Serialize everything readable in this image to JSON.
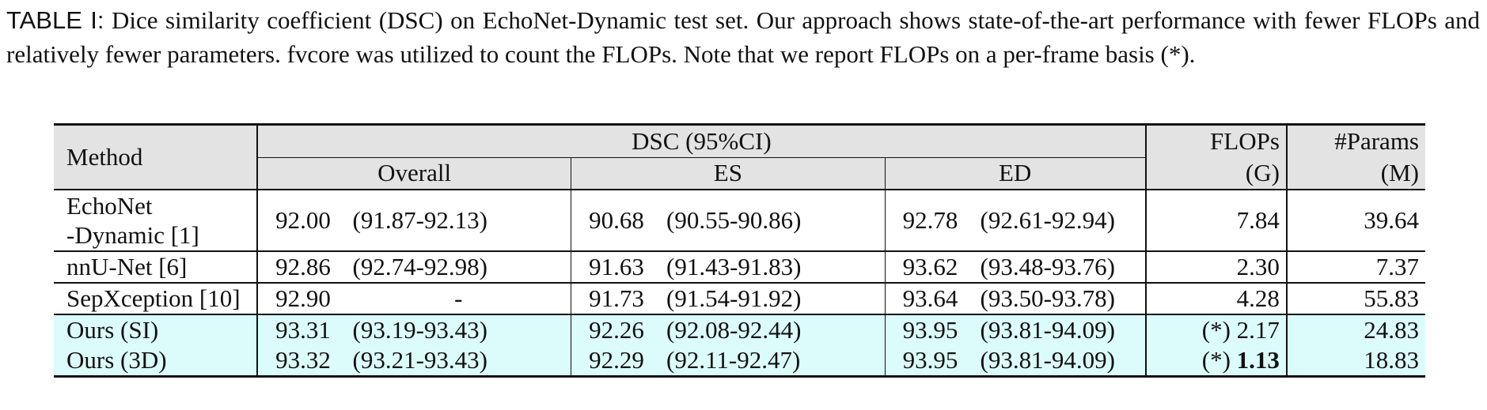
{
  "caption": {
    "label": "TABLE I:",
    "text": " Dice similarity coefficient (DSC) on EchoNet-Dynamic test set. Our approach shows state-of-the-art performance with fewer FLOPs and relatively fewer parameters. fvcore was utilized to count the FLOPs. Note that we report FLOPs on a per-frame basis (*)."
  },
  "header": {
    "method": "Method",
    "dsc": "DSC (95%CI)",
    "flops": "FLOPs",
    "flops_unit": "(G)",
    "params": "#Params",
    "params_unit": "(M)",
    "overall": "Overall",
    "es": "ES",
    "ed": "ED"
  },
  "rows": [
    {
      "method_line1": "EchoNet",
      "method_line2": "-Dynamic [1]",
      "overall": "92.00",
      "overall_ci": "(91.87-92.13)",
      "es": "90.68",
      "es_ci": "(90.55-90.86)",
      "ed": "92.78",
      "ed_ci": "(92.61-92.94)",
      "flops": "7.84",
      "params": "39.64"
    },
    {
      "method": "nnU-Net [6]",
      "overall": "92.86",
      "overall_ci": "(92.74-92.98)",
      "es": "91.63",
      "es_ci": "(91.43-91.83)",
      "ed": "93.62",
      "ed_ci": "(93.48-93.76)",
      "flops": "2.30",
      "params": "7.37"
    },
    {
      "method": "SepXception [10]",
      "overall": "92.90",
      "overall_ci": "-",
      "es": "91.73",
      "es_ci": "(91.54-91.92)",
      "ed": "93.64",
      "ed_ci": "(93.50-93.78)",
      "flops": "4.28",
      "params": "55.83"
    },
    {
      "method": "Ours (SI)",
      "overall": "93.31",
      "overall_ci": "(93.19-93.43)",
      "es": "92.26",
      "es_ci": "(92.08-92.44)",
      "ed": "93.95",
      "ed_ci": "(93.81-94.09)",
      "flops_prefix": "(*)",
      "flops": "2.17",
      "params": "24.83"
    },
    {
      "method": "Ours (3D)",
      "overall": "93.32",
      "overall_ci": "(93.21-93.43)",
      "es": "92.29",
      "es_ci": "(92.11-92.47)",
      "ed": "93.95",
      "ed_ci": "(93.81-94.09)",
      "flops_prefix": "(*)",
      "flops": "1.13",
      "params": "18.83"
    }
  ],
  "colors": {
    "header_bg": "#e3e3e3",
    "highlight_bg": "#dcfcfc"
  }
}
